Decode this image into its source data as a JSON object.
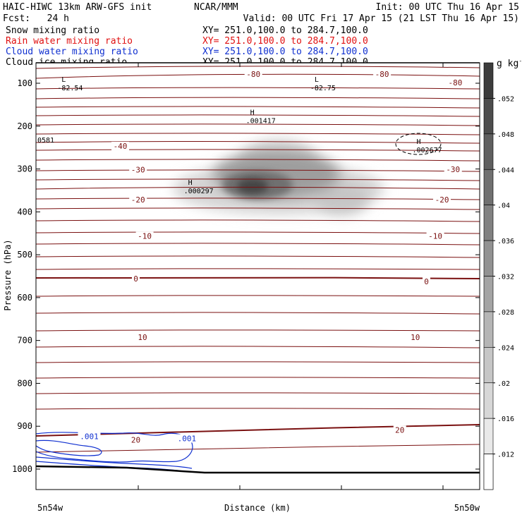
{
  "header": {
    "line1_left": "HAIC-HIWC 13km ARW-GFS init",
    "line1_mid": "NCAR/MMM",
    "line1_right": "Init: 00 UTC Thu 16 Apr 15",
    "line2_left": "Fcst:   24 h",
    "line2_right": "Valid: 00 UTC Fri 17 Apr 15 (21 LST Thu 16 Apr 15)"
  },
  "fields": [
    {
      "label": "Snow mixing ratio",
      "xy": "XY= 251.0,100.0 to 284.7,100.0",
      "color": "#000000"
    },
    {
      "label": "Rain water mixing ratio",
      "xy": "XY= 251.0,100.0 to 284.7,100.0",
      "color": "#e01010"
    },
    {
      "label": "Cloud water mixing ratio",
      "xy": "XY= 251.0,100.0 to 284.7,100.0",
      "color": "#1030d0"
    },
    {
      "label": "Cloud ice mixing ratio",
      "xy": "XY= 251.0,100.0 to 284.7,100.0",
      "color": "#000000"
    }
  ],
  "colors": {
    "temperature_contour": "#7a1010",
    "cloud_water_contour": "#1030d0",
    "terrain": "#000000"
  },
  "chart_data": {
    "type": "heatmap",
    "title": "",
    "xlabel": "Distance (km)",
    "ylabel": "Pressure (hPa)",
    "x_endpoints": [
      "5n54w",
      "5n50w"
    ],
    "ylim": [
      1050,
      50
    ],
    "y_ticks": [
      100,
      200,
      300,
      400,
      500,
      600,
      700,
      800,
      900,
      1000
    ],
    "colorbar": {
      "unit": "g kg",
      "unit_exp": "-1",
      "ticks": [
        ".012",
        ".016",
        ".02",
        ".024",
        ".028",
        ".032",
        ".036",
        ".04",
        ".044",
        ".048",
        ".052"
      ]
    },
    "contour_labels": [
      {
        "text": "-80",
        "x": 0.49,
        "p": 80
      },
      {
        "text": "-80",
        "x": 0.78,
        "p": 80
      },
      {
        "text": "-80",
        "x": 0.945,
        "p": 100
      },
      {
        "text": "-40",
        "x": 0.19,
        "p": 248
      },
      {
        "text": "-30",
        "x": 0.23,
        "p": 303
      },
      {
        "text": "-30",
        "x": 0.94,
        "p": 302
      },
      {
        "text": "-20",
        "x": 0.23,
        "p": 373
      },
      {
        "text": "-20",
        "x": 0.915,
        "p": 373
      },
      {
        "text": "-10",
        "x": 0.245,
        "p": 458
      },
      {
        "text": "-10",
        "x": 0.9,
        "p": 458
      },
      {
        "text": "0",
        "x": 0.225,
        "p": 557
      },
      {
        "text": "0",
        "x": 0.88,
        "p": 564
      },
      {
        "text": "10",
        "x": 0.24,
        "p": 694
      },
      {
        "text": "10",
        "x": 0.855,
        "p": 694
      },
      {
        "text": "20",
        "x": 0.225,
        "p": 933
      },
      {
        "text": "20",
        "x": 0.82,
        "p": 910
      }
    ],
    "extrema": [
      {
        "mark": "L",
        "value": "-82.54",
        "x": 0.045,
        "p": 110
      },
      {
        "mark": "L",
        "value": "-82.75",
        "x": 0.615,
        "p": 110
      },
      {
        "mark": "H",
        "value": ".001417",
        "x": 0.47,
        "p": 186
      },
      {
        "mark": "H",
        "value": ".002677",
        "x": 0.845,
        "p": 255
      },
      {
        "mark": "H",
        "value": ".000297",
        "x": 0.33,
        "p": 350
      },
      {
        "mark": "",
        "value": "0581",
        "x": 0.0,
        "p": 232
      }
    ],
    "cloud_water_labels": [
      {
        "text": ".001",
        "x": 0.12,
        "p": 925
      },
      {
        "text": ".001",
        "x": 0.34,
        "p": 930
      }
    ]
  }
}
